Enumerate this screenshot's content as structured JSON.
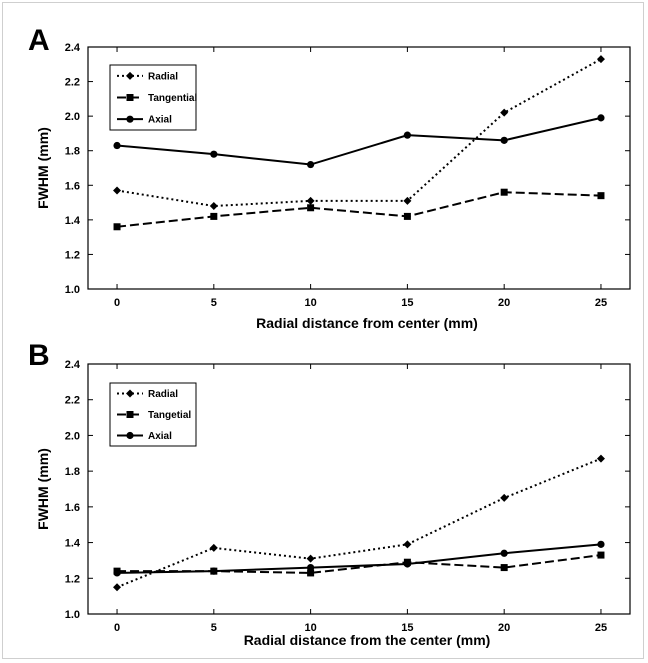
{
  "chart_data": [
    {
      "type": "line",
      "panel_label": "A",
      "x": [
        0,
        5,
        10,
        15,
        20,
        25
      ],
      "xticks": [
        "0",
        "5",
        "10",
        "15",
        "20",
        "25"
      ],
      "yticks": [
        "1.0",
        "1.2",
        "1.4",
        "1.6",
        "1.8",
        "2.0",
        "2.2",
        "2.4"
      ],
      "xlim": [
        -1.5,
        26.5
      ],
      "ylim": [
        1.0,
        2.4
      ],
      "xlabel": "Radial distance from center (mm)",
      "ylabel": "FWHM (mm)",
      "legend_position": "top-left",
      "grid": false,
      "series": [
        {
          "name": "Radial",
          "values": [
            1.57,
            1.48,
            1.51,
            1.51,
            2.02,
            2.33
          ],
          "marker": "diamond",
          "line": "dotted"
        },
        {
          "name": "Tangential",
          "values": [
            1.36,
            1.42,
            1.47,
            1.42,
            1.56,
            1.54
          ],
          "marker": "square",
          "line": "dashed"
        },
        {
          "name": "Axial",
          "values": [
            1.83,
            1.78,
            1.72,
            1.89,
            1.86,
            1.99
          ],
          "marker": "circle",
          "line": "solid"
        }
      ]
    },
    {
      "type": "line",
      "panel_label": "B",
      "x": [
        0,
        5,
        10,
        15,
        20,
        25
      ],
      "xticks": [
        "0",
        "5",
        "10",
        "15",
        "20",
        "25"
      ],
      "yticks": [
        "1.0",
        "1.2",
        "1.4",
        "1.6",
        "1.8",
        "2.0",
        "2.2",
        "2.4"
      ],
      "xlim": [
        -1.5,
        26.5
      ],
      "ylim": [
        1.0,
        2.4
      ],
      "xlabel": "Radial distance from the center (mm)",
      "ylabel": "FWHM (mm)",
      "legend_position": "top-left",
      "grid": false,
      "series": [
        {
          "name": "Radial",
          "values": [
            1.15,
            1.37,
            1.31,
            1.39,
            1.65,
            1.87
          ],
          "marker": "diamond",
          "line": "dotted"
        },
        {
          "name": "Tangetial",
          "values": [
            1.24,
            1.24,
            1.23,
            1.29,
            1.26,
            1.33
          ],
          "marker": "square",
          "line": "dashed"
        },
        {
          "name": "Axial",
          "values": [
            1.23,
            1.24,
            1.26,
            1.28,
            1.34,
            1.39
          ],
          "marker": "circle",
          "line": "solid"
        }
      ]
    }
  ]
}
